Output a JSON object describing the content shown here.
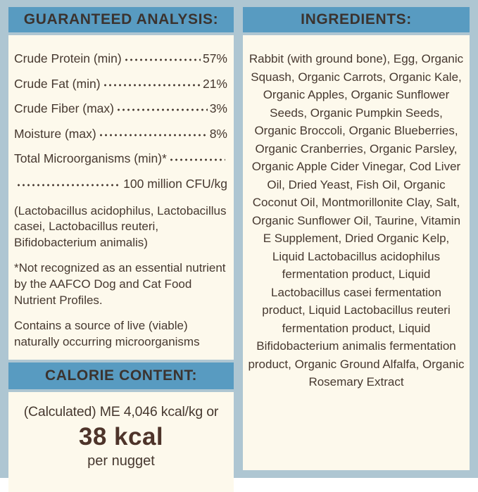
{
  "colors": {
    "background": "#aec6d2",
    "header_band": "#589bc1",
    "panel": "#fdf9ec",
    "text": "#46382f",
    "calorie_value_text": "#4e342a"
  },
  "guaranteed_analysis": {
    "header": "GUARANTEED ANALYSIS:",
    "rows": [
      {
        "label": "Crude Protein (min)",
        "value": "57%"
      },
      {
        "label": "Crude Fat (min)",
        "value": "21%"
      },
      {
        "label": "Crude Fiber (max)",
        "value": "3%"
      },
      {
        "label": "Moisture (max)",
        "value": "8%"
      },
      {
        "label": "Total Microorganisms (min)*",
        "value": ""
      },
      {
        "label": "",
        "value": "100 million CFU/kg"
      }
    ],
    "notes": {
      "probiotics": "(Lactobacillus acidophilus, Lactobacillus casei, Lactobacillus reuteri, Bifidobacterium animalis)",
      "aafco": "*Not recognized as an essential nutrient by the AAFCO Dog and Cat Food Nutrient Profiles.",
      "live_microorganisms": "Contains a source of live (viable) naturally occurring microorganisms"
    }
  },
  "calorie_content": {
    "header": "CALORIE CONTENT:",
    "calculated_line": "(Calculated) ME 4,046 kcal/kg or",
    "value": "38 kcal",
    "unit": "per nugget"
  },
  "ingredients": {
    "header": "INGREDIENTS:",
    "text": "Rabbit (with ground bone), Egg, Organic Squash, Organic Carrots, Organic Kale, Organic Apples, Organic Sunflower Seeds, Organic Pumpkin Seeds, Organic Broccoli, Organic Blueberries, Organic Cranberries, Organic Parsley, Organic Apple Cider Vinegar, Cod Liver Oil, Dried Yeast, Fish Oil, Organic Coconut Oil, Montmorillonite Clay, Salt, Organic Sunflower Oil, Taurine, Vitamin E Supplement, Dried Organic Kelp, Liquid Lactobacillus acidophilus fermentation product, Liquid Lactobacillus casei fermentation product, Liquid Lactobacillus reuteri fermentation product, Liquid Bifidobacterium animalis fermentation product, Organic Ground Alfalfa, Organic Rosemary Extract"
  }
}
